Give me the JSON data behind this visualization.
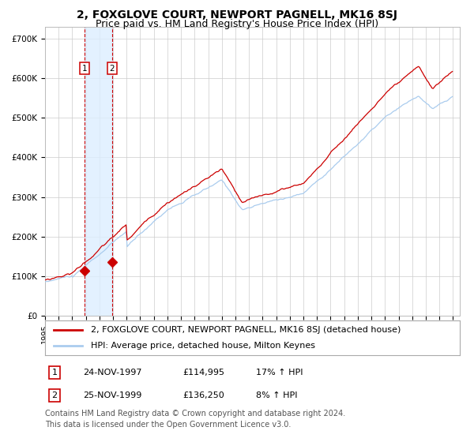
{
  "title": "2, FOXGLOVE COURT, NEWPORT PAGNELL, MK16 8SJ",
  "subtitle": "Price paid vs. HM Land Registry's House Price Index (HPI)",
  "ylim": [
    0,
    730000
  ],
  "ytick_labels": [
    "£0",
    "£100K",
    "£200K",
    "£300K",
    "£400K",
    "£500K",
    "£600K",
    "£700K"
  ],
  "sale_dates": [
    "24-NOV-1997",
    "25-NOV-1999"
  ],
  "sale_prices": [
    114995,
    136250
  ],
  "sale_pct": [
    "17%",
    "8%"
  ],
  "sale_labels": [
    "1",
    "2"
  ],
  "legend_house": "2, FOXGLOVE COURT, NEWPORT PAGNELL, MK16 8SJ (detached house)",
  "legend_hpi": "HPI: Average price, detached house, Milton Keynes",
  "footnote1": "Contains HM Land Registry data © Crown copyright and database right 2024.",
  "footnote2": "This data is licensed under the Open Government Licence v3.0.",
  "line_color_house": "#cc0000",
  "line_color_hpi": "#aaccee",
  "marker_color": "#cc0000",
  "vline_color": "#cc0000",
  "shade_color": "#ddeeff",
  "grid_color": "#cccccc",
  "bg_color": "#ffffff",
  "title_fontsize": 10,
  "subtitle_fontsize": 9,
  "tick_fontsize": 7.5,
  "legend_fontsize": 8,
  "footnote_fontsize": 7
}
